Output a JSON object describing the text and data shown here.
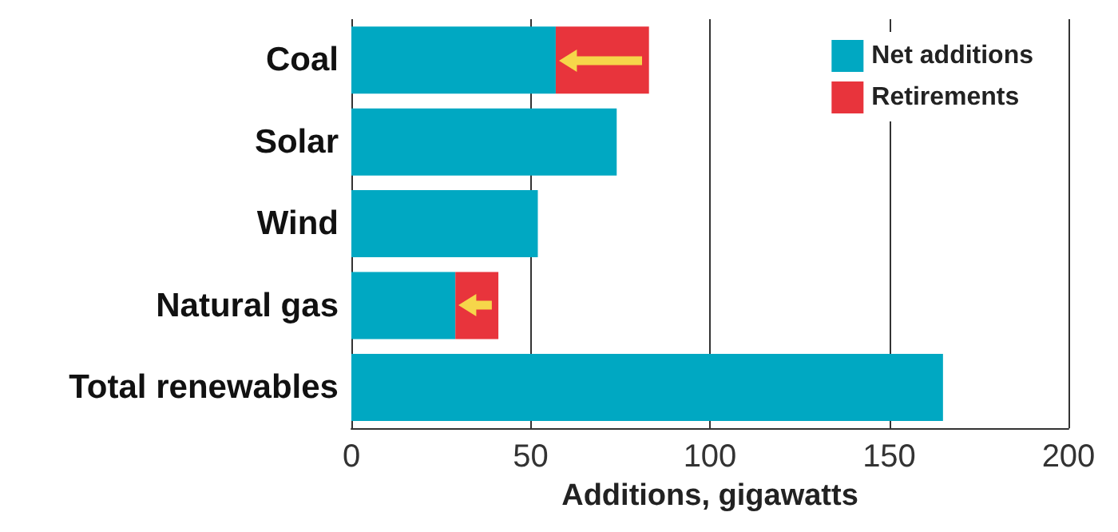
{
  "chart_data": {
    "type": "bar",
    "orientation": "horizontal",
    "stacked": true,
    "categories": [
      "Coal",
      "Solar",
      "Wind",
      "Natural gas",
      "Total renewables"
    ],
    "series": [
      {
        "name": "Net additions",
        "color": "#00a8c2",
        "values": [
          57,
          74,
          52,
          29,
          165
        ]
      },
      {
        "name": "Retirements",
        "color": "#e8343c",
        "values": [
          26,
          null,
          null,
          12,
          null
        ]
      }
    ],
    "xlabel": "Additions, gigawatts",
    "xlim": [
      0,
      200
    ],
    "xticks": [
      0,
      50,
      100,
      150,
      200
    ],
    "grid": "x",
    "legend": "top right"
  }
}
